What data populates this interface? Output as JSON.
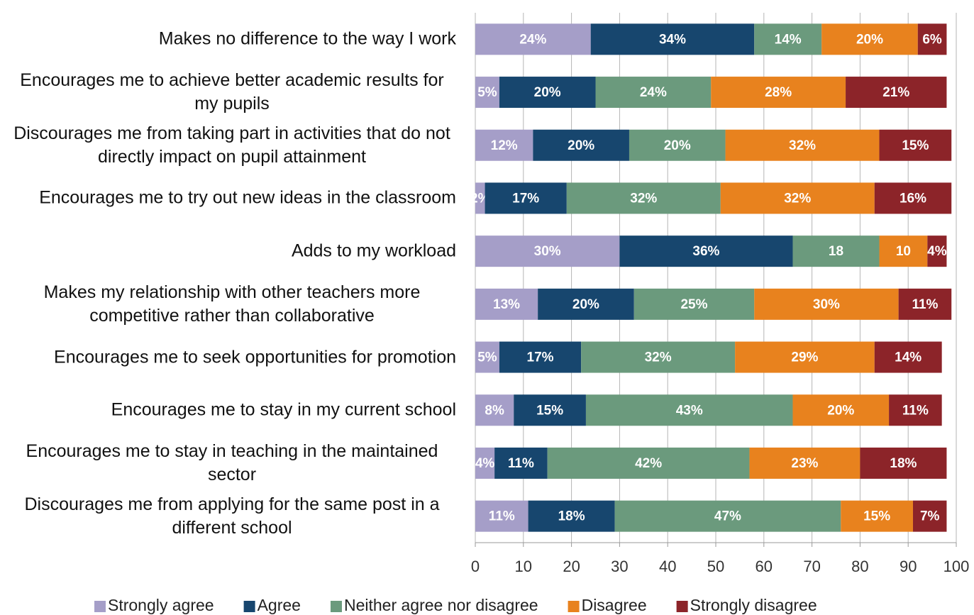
{
  "chart_data": {
    "type": "stacked_bar_horizontal",
    "categories": [
      "Makes no difference to the way I work",
      "Encourages me to achieve better academic results for my pupils",
      "Discourages me from taking part in activities that do not directly impact on pupil attainment",
      "Encourages me to try out new ideas in the classroom",
      "Adds to my workload",
      "Makes my relationship with other teachers more competitive rather than collaborative",
      "Encourages me to seek opportunities for promotion",
      "Encourages me to stay in my current school",
      "Encourages me to stay in teaching in the maintained sector",
      "Discourages me from applying for the same post in a different school"
    ],
    "series": [
      {
        "name": "Strongly agree",
        "color": "#a59ec8",
        "values": [
          24,
          5,
          12,
          2,
          30,
          13,
          5,
          8,
          4,
          11
        ],
        "value_labels": [
          "24%",
          "5%",
          "12%",
          "2%",
          "30%",
          "13%",
          "5%",
          "8%",
          "4%",
          "11%"
        ]
      },
      {
        "name": "Agree",
        "color": "#17466e",
        "values": [
          34,
          20,
          20,
          17,
          36,
          20,
          17,
          15,
          11,
          18
        ],
        "value_labels": [
          "34%",
          "20%",
          "20%",
          "17%",
          "36%",
          "20%",
          "17%",
          "15%",
          "11%",
          "18%"
        ]
      },
      {
        "name": "Neither agree nor disagree",
        "color": "#6b9a7d",
        "values": [
          14,
          24,
          20,
          32,
          18,
          25,
          32,
          43,
          42,
          47
        ],
        "value_labels": [
          "14%",
          "24%",
          "20%",
          "32%",
          "18",
          "25%",
          "32%",
          "43%",
          "42%",
          "47%"
        ]
      },
      {
        "name": "Disagree",
        "color": "#e8821e",
        "values": [
          20,
          28,
          32,
          32,
          10,
          30,
          29,
          20,
          23,
          15
        ],
        "value_labels": [
          "20%",
          "28%",
          "32%",
          "32%",
          "10",
          "30%",
          "29%",
          "20%",
          "23%",
          "15%"
        ]
      },
      {
        "name": "Strongly disagree",
        "color": "#8c2429",
        "values": [
          6,
          21,
          15,
          16,
          4,
          11,
          14,
          11,
          18,
          7
        ],
        "value_labels": [
          "6%",
          "21%",
          "15%",
          "16%",
          "4%",
          "11%",
          "14%",
          "11%",
          "18%",
          "7%"
        ]
      }
    ],
    "xlim": [
      0,
      100
    ],
    "xticks": [
      0,
      10,
      20,
      30,
      40,
      50,
      60,
      70,
      80,
      90,
      100
    ],
    "grid": true
  }
}
